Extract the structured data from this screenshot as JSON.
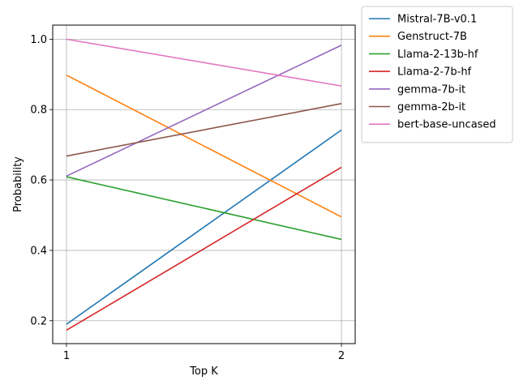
{
  "chart_data": {
    "type": "line",
    "title": "",
    "xlabel": "Top K",
    "ylabel": "Probability",
    "x": [
      1,
      2
    ],
    "xticks": [
      "1",
      "2"
    ],
    "yticks": [
      "0.2",
      "0.4",
      "0.6",
      "0.8",
      "1.0"
    ],
    "xlim": [
      0.95,
      2.05
    ],
    "ylim": [
      0.135,
      1.04
    ],
    "grid": "y",
    "legend_position": "outside-top-right",
    "series": [
      {
        "name": "Mistral-7B-v0.1",
        "color": "#1f77b4",
        "values": [
          0.19,
          0.742
        ]
      },
      {
        "name": "Genstruct-7B",
        "color": "#ff7f0e",
        "values": [
          0.898,
          0.495
        ]
      },
      {
        "name": "Llama-2-13b-hf",
        "color": "#2ca02c",
        "values": [
          0.609,
          0.431
        ]
      },
      {
        "name": "Llama-2-7b-hf",
        "color": "#d62728",
        "values": [
          0.173,
          0.636
        ]
      },
      {
        "name": "gemma-7b-it",
        "color": "#9467bd",
        "values": [
          0.611,
          0.983
        ]
      },
      {
        "name": "gemma-2b-it",
        "color": "#8c564b",
        "values": [
          0.668,
          0.817
        ]
      },
      {
        "name": "bert-base-uncased",
        "color": "#e377c2",
        "values": [
          1.0,
          0.867
        ]
      }
    ]
  }
}
